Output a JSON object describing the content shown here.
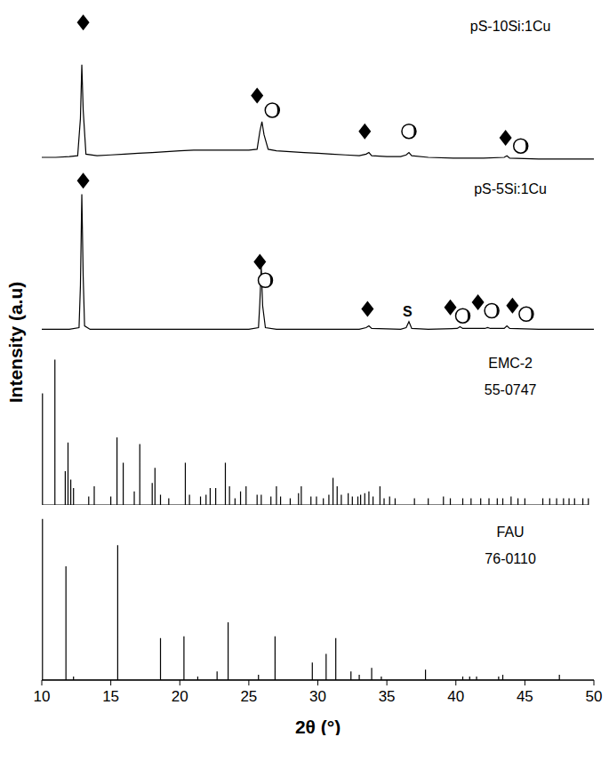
{
  "chart_data": [
    {
      "type": "line",
      "title": "pS-10Si:1Cu",
      "ylabel": "Intensity (a.u)",
      "color": "#000000",
      "xlim": [
        10,
        50
      ],
      "ylim": [
        0,
        100
      ],
      "tick_labels": false,
      "x": [
        10,
        11,
        12,
        12.6,
        12.8,
        12.9,
        13.0,
        13.2,
        14,
        15,
        16,
        17,
        18,
        19,
        20,
        21,
        22,
        23,
        24,
        25,
        25.6,
        25.8,
        25.95,
        26.1,
        26.4,
        27,
        28,
        29,
        30,
        31,
        32,
        33,
        33.5,
        33.7,
        33.9,
        35,
        36,
        36.4,
        36.6,
        36.8,
        38,
        40,
        42,
        43.5,
        43.7,
        43.9,
        46,
        48,
        50
      ],
      "values": [
        6,
        6,
        6.5,
        7,
        30,
        63,
        35,
        8,
        7,
        7.5,
        8,
        8.5,
        9,
        9.5,
        10,
        10.5,
        10.5,
        10.5,
        10.5,
        10.5,
        11,
        22,
        28,
        20,
        11,
        10,
        9.5,
        9,
        8.5,
        8,
        7.5,
        7,
        8,
        9,
        7,
        6.5,
        6.5,
        7.5,
        9,
        7,
        6,
        5.5,
        5.5,
        6,
        7,
        5.5,
        5,
        5,
        5
      ],
      "annotations": [
        {
          "x": 13.0,
          "y": 89,
          "marker": "diamond"
        },
        {
          "x": 25.6,
          "y": 44,
          "marker": "diamond"
        },
        {
          "x": 26.7,
          "y": 35,
          "marker": "circle"
        },
        {
          "x": 33.4,
          "y": 22,
          "marker": "diamond"
        },
        {
          "x": 36.6,
          "y": 22,
          "marker": "circle"
        },
        {
          "x": 43.6,
          "y": 18,
          "marker": "diamond"
        },
        {
          "x": 44.7,
          "y": 13,
          "marker": "circle"
        }
      ]
    },
    {
      "type": "line",
      "title": "pS-5Si:1Cu",
      "color": "#000000",
      "xlim": [
        10,
        50
      ],
      "ylim": [
        0,
        100
      ],
      "tick_labels": false,
      "x": [
        10,
        12,
        12.7,
        12.8,
        12.9,
        13.0,
        13.1,
        13.5,
        15,
        20,
        25,
        25.7,
        25.8,
        25.9,
        26.0,
        26.2,
        27,
        30,
        33,
        33.5,
        33.7,
        33.9,
        36,
        36.4,
        36.6,
        36.8,
        38,
        40.1,
        40.3,
        40.5,
        42.1,
        42.3,
        42.5,
        43.5,
        43.7,
        43.9,
        46,
        50
      ],
      "values": [
        4,
        4,
        5,
        30,
        84,
        35,
        6,
        4,
        4,
        4,
        4,
        5,
        20,
        41,
        18,
        5,
        4,
        4,
        4,
        5,
        6,
        4.5,
        4,
        5,
        8.5,
        4.5,
        4,
        4.5,
        5.5,
        4.5,
        4.5,
        5,
        4.5,
        4.5,
        6,
        4.5,
        4,
        4
      ],
      "annotations": [
        {
          "x": 13.0,
          "y": 92,
          "marker": "diamond"
        },
        {
          "x": 25.8,
          "y": 44,
          "marker": "diamond"
        },
        {
          "x": 26.2,
          "y": 33,
          "marker": "circle"
        },
        {
          "x": 33.6,
          "y": 16,
          "marker": "diamond"
        },
        {
          "x": 36.5,
          "y": 15,
          "text": "S"
        },
        {
          "x": 39.6,
          "y": 17,
          "marker": "diamond"
        },
        {
          "x": 40.5,
          "y": 12,
          "marker": "circle"
        },
        {
          "x": 41.6,
          "y": 20,
          "marker": "diamond"
        },
        {
          "x": 42.6,
          "y": 15,
          "marker": "circle"
        },
        {
          "x": 44.1,
          "y": 18,
          "marker": "diamond"
        },
        {
          "x": 45.1,
          "y": 13,
          "marker": "circle"
        }
      ]
    },
    {
      "type": "stick",
      "title": "EMC-2",
      "subtitle": "55-0747",
      "color": "#000000",
      "xlim": [
        10,
        50
      ],
      "ylim": [
        0,
        100
      ],
      "tick_labels": false,
      "x": [
        10.05,
        10.95,
        11.7,
        11.9,
        12.1,
        12.3,
        13.4,
        13.8,
        15.0,
        15.45,
        15.9,
        16.7,
        17.1,
        18.0,
        18.2,
        18.6,
        19.2,
        20.4,
        20.7,
        21.5,
        21.9,
        22.2,
        22.6,
        23.3,
        23.6,
        24.0,
        24.4,
        24.8,
        25.6,
        25.9,
        26.6,
        27.0,
        27.3,
        28.0,
        28.6,
        28.8,
        29.5,
        29.9,
        30.4,
        30.8,
        31.1,
        31.4,
        31.7,
        32.2,
        32.5,
        32.9,
        33.1,
        33.4,
        33.7,
        34.0,
        34.5,
        34.8,
        35.2,
        35.6,
        37.0,
        38.0,
        39.1,
        39.6,
        40.5,
        41.1,
        41.8,
        42.4,
        43.0,
        43.4,
        44.0,
        44.5,
        45.0,
        46.3,
        46.8,
        47.3,
        47.8,
        48.2,
        48.6,
        49.2,
        49.6
      ],
      "values": [
        66,
        86,
        20,
        37,
        15,
        10,
        5,
        11,
        5,
        40,
        25,
        8,
        36,
        13,
        22,
        6,
        4,
        25,
        6,
        5,
        6,
        10,
        10,
        25,
        11,
        4,
        8,
        11,
        6,
        6,
        5,
        11,
        5,
        4,
        7,
        11,
        5,
        5,
        4,
        6,
        16,
        11,
        6,
        7,
        5,
        5,
        6,
        7,
        8,
        5,
        11,
        4,
        5,
        4,
        4,
        4,
        5,
        4,
        4,
        4,
        4,
        4,
        4,
        4,
        5,
        4,
        4,
        4,
        4,
        4,
        4,
        4,
        4,
        4,
        4
      ]
    },
    {
      "type": "stick",
      "title": "FAU",
      "subtitle": "76-0110",
      "color": "#000000",
      "xlim": [
        10,
        50
      ],
      "ylim": [
        0,
        100
      ],
      "tick_labels": "x",
      "xlabel": "2θ (°)",
      "xticks": [
        10,
        15,
        20,
        25,
        30,
        35,
        40,
        45,
        50
      ],
      "x": [
        10.05,
        11.75,
        12.3,
        15.5,
        18.6,
        20.3,
        21.3,
        22.7,
        23.5,
        25.7,
        26.9,
        29.6,
        30.6,
        31.3,
        32.4,
        33.0,
        33.9,
        34.6,
        37.8,
        40.5,
        41.0,
        41.5,
        43.1,
        43.4,
        47.5
      ],
      "values": [
        92,
        65,
        2,
        77,
        24,
        25,
        2,
        5,
        33,
        3,
        25,
        10,
        15,
        24,
        5,
        3,
        7,
        2,
        6,
        2,
        2,
        2,
        2,
        3,
        3
      ]
    }
  ]
}
